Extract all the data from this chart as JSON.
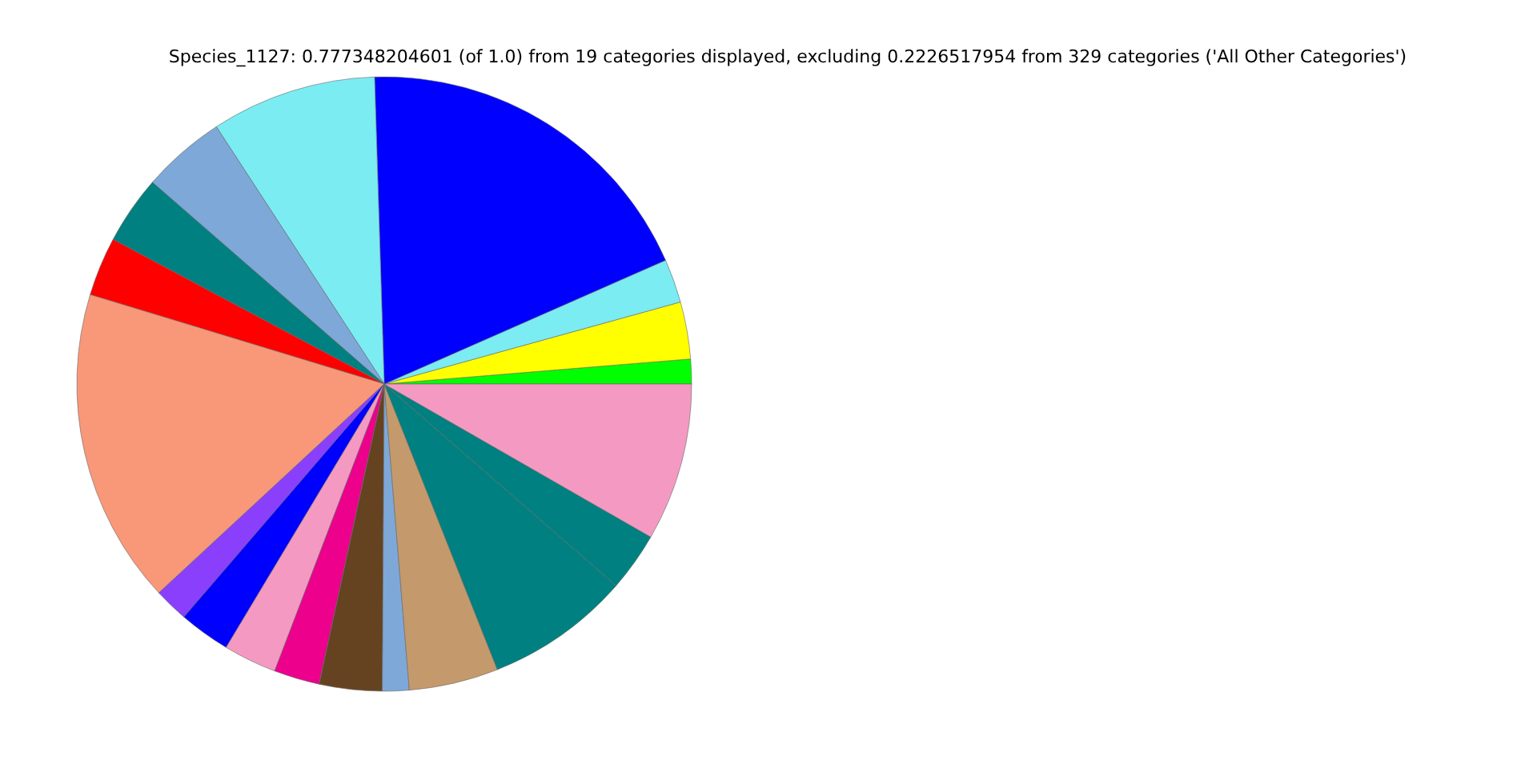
{
  "chart_data": {
    "type": "pie",
    "title": "Species_1127: 0.777348204601 (of 1.0) from 19 categories displayed, excluding 0.2226517954 from 329 categories ('All Other Categories')",
    "categories": [
      null,
      null,
      null,
      null,
      null,
      null,
      null,
      null,
      null,
      null,
      null,
      null,
      null,
      null,
      null,
      null,
      null,
      null,
      null
    ],
    "values": [
      1.3,
      3.0,
      2.3,
      18.9,
      8.7,
      4.4,
      3.6,
      3.1,
      16.6,
      1.8,
      2.7,
      2.8,
      2.4,
      3.3,
      1.4,
      4.7,
      7.6,
      3.1,
      8.3
    ],
    "colors": [
      "#00ff00",
      "#ffff00",
      "#7aecf2",
      "#0000ff",
      "#7aecf2",
      "#7ea8d8",
      "#008080",
      "#ff0000",
      "#f89878",
      "#8a3ffc",
      "#0000ff",
      "#f49ac2",
      "#ec008c",
      "#654321",
      "#7ea8d8",
      "#c49a6c",
      "#008080",
      "#008080",
      "#f49ac2"
    ],
    "legend": false
  }
}
